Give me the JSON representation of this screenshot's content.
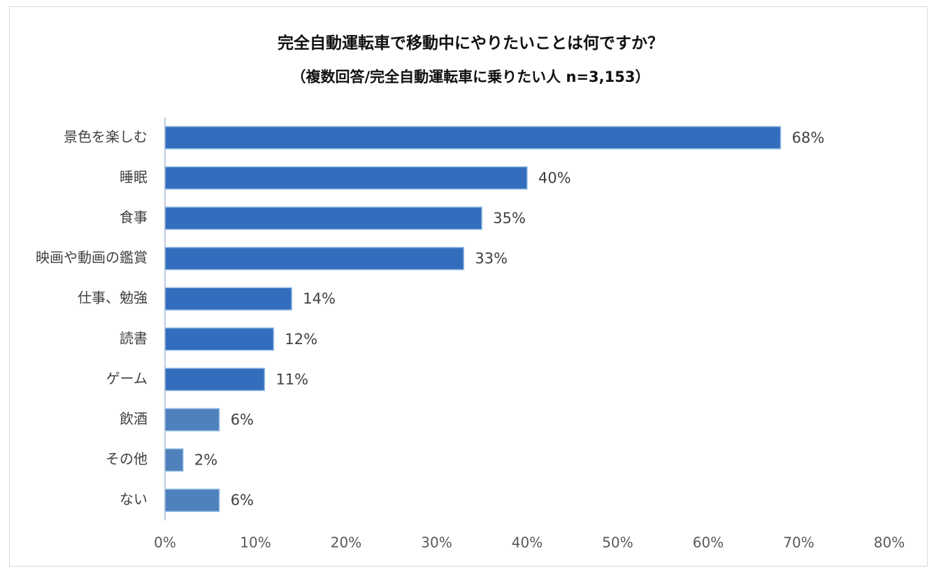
{
  "colors": {
    "primary_bar": "#336dbd",
    "secondary_bar": "#4f81bd",
    "bar_edge": "#9dc3e6",
    "axis": "#a6b9d8"
  },
  "chart_data": {
    "type": "bar",
    "orientation": "horizontal",
    "title": "完全自動運転車で移動中にやりたいことは何ですか？",
    "subtitle": "（複数回答/完全自動運転車に乗りたい人 n=3,153）",
    "categories": [
      "景色を楽しむ",
      "睡眠",
      "食事",
      "映画や動画の鑑賞",
      "仕事、勉強",
      "読書",
      "ゲーム",
      "飲酒",
      "その他",
      "ない"
    ],
    "values": [
      68,
      40,
      35,
      33,
      14,
      12,
      11,
      6,
      2,
      6
    ],
    "value_labels": [
      "68%",
      "40%",
      "35%",
      "33%",
      "14%",
      "12%",
      "11%",
      "6%",
      "2%",
      "6%"
    ],
    "xlim": [
      0,
      80
    ],
    "xticks": [
      "0%",
      "10%",
      "20%",
      "30%",
      "40%",
      "50%",
      "60%",
      "70%",
      "80%"
    ],
    "grid": false,
    "legend": "none"
  }
}
